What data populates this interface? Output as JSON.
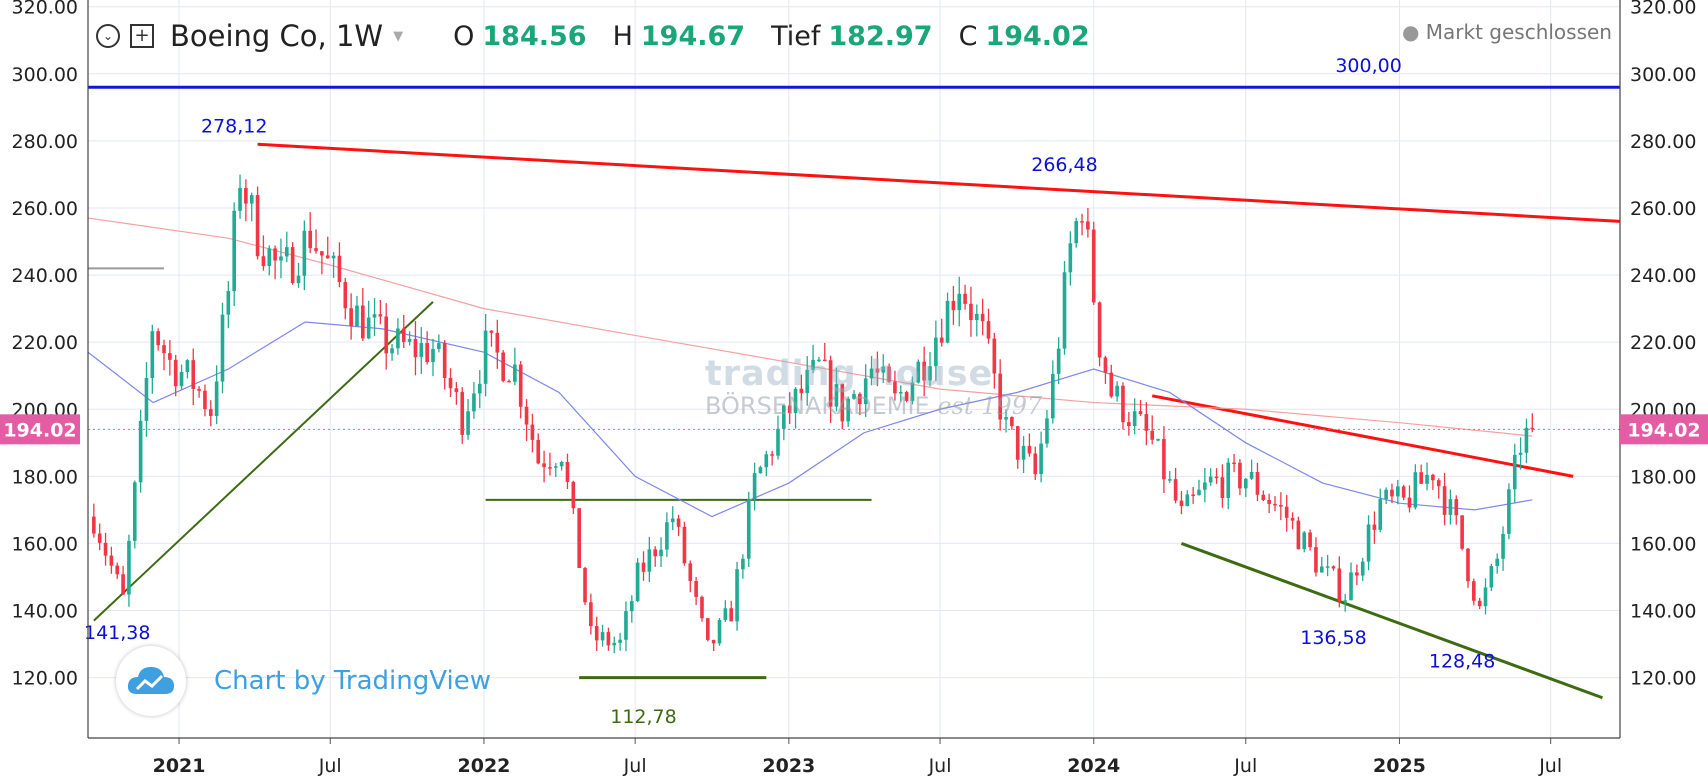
{
  "header": {
    "symbol": "Boeing Co, 1W",
    "ohlc": [
      {
        "key": "O",
        "value": "184.56"
      },
      {
        "key": "H",
        "value": "194.67"
      },
      {
        "key": "Tief",
        "value": "182.97"
      },
      {
        "key": "C",
        "value": "194.02"
      }
    ],
    "status": "Markt geschlossen"
  },
  "watermark": {
    "top": "trading house",
    "bottom": "BÖRSENAKADEMIE",
    "est": "est 1997"
  },
  "branding": {
    "text": "Chart by TradingView"
  },
  "colors": {
    "up": "#22ab94",
    "down": "#f23645",
    "resistance": "#ff1111",
    "support": "#3d6b12",
    "level300": "#0b1ccf",
    "ma_slow": "#f4a1a1",
    "ma_fast": "#7d86f0",
    "price_tag": "#e35da5"
  },
  "chart_data": {
    "type": "candlestick",
    "y_axis": {
      "ylim": [
        102,
        322
      ],
      "ticks": [
        "120.00",
        "140.00",
        "160.00",
        "180.00",
        "200.00",
        "220.00",
        "240.00",
        "260.00",
        "280.00",
        "300.00",
        "320.00"
      ],
      "both_sides": true
    },
    "x_axis": {
      "xlim": [
        "2020-09-14",
        "2025-09-22"
      ],
      "ticks": [
        {
          "label": "2021",
          "date": "2021-01-01",
          "major": true
        },
        {
          "label": "Jul",
          "date": "2021-07-01",
          "major": false
        },
        {
          "label": "2022",
          "date": "2022-01-01",
          "major": true
        },
        {
          "label": "Jul",
          "date": "2022-07-01",
          "major": false
        },
        {
          "label": "2023",
          "date": "2023-01-01",
          "major": true
        },
        {
          "label": "Jul",
          "date": "2023-07-01",
          "major": false
        },
        {
          "label": "2024",
          "date": "2024-01-01",
          "major": true
        },
        {
          "label": "Jul",
          "date": "2024-07-01",
          "major": false
        },
        {
          "label": "2025",
          "date": "2025-01-01",
          "major": true
        },
        {
          "label": "Jul",
          "date": "2025-07-01",
          "major": false
        }
      ]
    },
    "grid": true,
    "current_price": {
      "value": 194.02,
      "label": "194.02"
    },
    "price_path": [
      [
        "2020-09-21",
        168
      ],
      [
        "2020-10-26",
        143
      ],
      [
        "2020-11-09",
        175
      ],
      [
        "2020-11-30",
        225
      ],
      [
        "2020-12-21",
        214
      ],
      [
        "2021-01-18",
        208
      ],
      [
        "2021-02-08",
        200
      ],
      [
        "2021-03-01",
        235
      ],
      [
        "2021-03-15",
        270
      ],
      [
        "2021-04-05",
        252
      ],
      [
        "2021-05-03",
        240
      ],
      [
        "2021-06-07",
        252
      ],
      [
        "2021-07-05",
        240
      ],
      [
        "2021-08-02",
        228
      ],
      [
        "2021-09-06",
        220
      ],
      [
        "2021-10-04",
        218
      ],
      [
        "2021-11-01",
        218
      ],
      [
        "2021-12-06",
        198
      ],
      [
        "2022-01-03",
        218
      ],
      [
        "2022-02-07",
        212
      ],
      [
        "2022-03-07",
        185
      ],
      [
        "2022-04-04",
        188
      ],
      [
        "2022-05-09",
        132
      ],
      [
        "2022-06-13",
        130
      ],
      [
        "2022-07-04",
        150
      ],
      [
        "2022-08-15",
        168
      ],
      [
        "2022-09-26",
        128
      ],
      [
        "2022-10-24",
        140
      ],
      [
        "2022-11-21",
        178
      ],
      [
        "2023-01-02",
        200
      ],
      [
        "2023-02-06",
        212
      ],
      [
        "2023-03-06",
        200
      ],
      [
        "2023-04-10",
        212
      ],
      [
        "2023-05-08",
        202
      ],
      [
        "2023-06-12",
        215
      ],
      [
        "2023-07-24",
        238
      ],
      [
        "2023-08-21",
        222
      ],
      [
        "2023-09-18",
        194
      ],
      [
        "2023-10-23",
        180
      ],
      [
        "2023-11-13",
        208
      ],
      [
        "2023-12-04",
        248
      ],
      [
        "2023-12-18",
        262
      ],
      [
        "2024-01-08",
        220
      ],
      [
        "2024-01-22",
        205
      ],
      [
        "2024-03-11",
        190
      ],
      [
        "2024-04-15",
        168
      ],
      [
        "2024-05-20",
        178
      ],
      [
        "2024-07-01",
        180
      ],
      [
        "2024-08-19",
        168
      ],
      [
        "2024-09-30",
        152
      ],
      [
        "2024-10-28",
        145
      ],
      [
        "2024-12-09",
        172
      ],
      [
        "2025-01-06",
        172
      ],
      [
        "2025-02-10",
        182
      ],
      [
        "2025-03-10",
        165
      ],
      [
        "2025-04-07",
        140
      ],
      [
        "2025-04-28",
        155
      ],
      [
        "2025-05-26",
        190
      ],
      [
        "2025-06-09",
        194.02
      ]
    ],
    "moving_averages": [
      {
        "kind": "slow",
        "points": [
          [
            "2020-09-14",
            257
          ],
          [
            "2021-03-01",
            251
          ],
          [
            "2021-07-01",
            243
          ],
          [
            "2022-01-01",
            230
          ],
          [
            "2022-07-01",
            222
          ],
          [
            "2023-01-01",
            214
          ],
          [
            "2023-07-01",
            206
          ],
          [
            "2024-01-01",
            202
          ],
          [
            "2024-07-01",
            200
          ],
          [
            "2025-01-01",
            196
          ],
          [
            "2025-05-01",
            193
          ],
          [
            "2025-06-09",
            192
          ]
        ]
      },
      {
        "kind": "fast",
        "points": [
          [
            "2020-09-14",
            217
          ],
          [
            "2020-12-01",
            202
          ],
          [
            "2021-03-01",
            212
          ],
          [
            "2021-06-01",
            226
          ],
          [
            "2021-09-01",
            224
          ],
          [
            "2022-01-01",
            217
          ],
          [
            "2022-04-01",
            205
          ],
          [
            "2022-07-01",
            180
          ],
          [
            "2022-10-01",
            168
          ],
          [
            "2023-01-01",
            178
          ],
          [
            "2023-04-01",
            193
          ],
          [
            "2023-07-01",
            200
          ],
          [
            "2023-10-01",
            205
          ],
          [
            "2024-01-01",
            212
          ],
          [
            "2024-04-01",
            205
          ],
          [
            "2024-07-01",
            190
          ],
          [
            "2024-10-01",
            178
          ],
          [
            "2025-01-01",
            172
          ],
          [
            "2025-04-01",
            170
          ],
          [
            "2025-06-09",
            173
          ]
        ]
      }
    ],
    "lines": [
      {
        "name": "level-300",
        "kind": "level300",
        "from": [
          "2020-09-14",
          296
        ],
        "to": [
          "2025-09-22",
          296
        ],
        "width": 3
      },
      {
        "name": "long-term-resistance",
        "kind": "resistance",
        "from": [
          "2021-04-05",
          279
        ],
        "to": [
          "2025-09-22",
          256
        ],
        "width": 3
      },
      {
        "name": "uptrend-support",
        "kind": "support",
        "from": [
          "2020-09-21",
          137
        ],
        "to": [
          "2021-11-01",
          232
        ],
        "width": 2
      },
      {
        "name": "double-bottom-neckline",
        "kind": "support",
        "from": [
          "2022-01-03",
          173
        ],
        "to": [
          "2023-04-10",
          173
        ],
        "width": 2
      },
      {
        "name": "double-bottom-base",
        "kind": "support",
        "from": [
          "2022-04-25",
          120
        ],
        "to": [
          "2022-12-05",
          120
        ],
        "width": 3
      },
      {
        "name": "wedge-resistance",
        "kind": "resistance",
        "from": [
          "2024-03-11",
          204
        ],
        "to": [
          "2025-07-28",
          180
        ],
        "width": 3
      },
      {
        "name": "wedge-support",
        "kind": "support",
        "from": [
          "2024-04-15",
          160
        ],
        "to": [
          "2025-09-01",
          114
        ],
        "width": 3
      },
      {
        "name": "prior-high-level",
        "kind": "grey",
        "from": [
          "2020-09-14",
          242
        ],
        "to": [
          "2020-12-14",
          242
        ],
        "width": 2
      }
    ],
    "annotations": [
      {
        "text": "300,00",
        "date": "2024-11-25",
        "y": 300.5,
        "color": "blue"
      },
      {
        "text": "278,12",
        "date": "2021-03-08",
        "y": 282.5,
        "color": "blue"
      },
      {
        "text": "266,48",
        "date": "2023-11-27",
        "y": 271,
        "color": "blue"
      },
      {
        "text": "141,38",
        "date": "2020-10-19",
        "y": 131.5,
        "color": "blue"
      },
      {
        "text": "112,78",
        "date": "2022-07-11",
        "y": 106.5,
        "color": "green"
      },
      {
        "text": "136,58",
        "date": "2024-10-14",
        "y": 130,
        "color": "blue"
      },
      {
        "text": "128,48",
        "date": "2025-03-17",
        "y": 123,
        "color": "blue"
      }
    ]
  }
}
